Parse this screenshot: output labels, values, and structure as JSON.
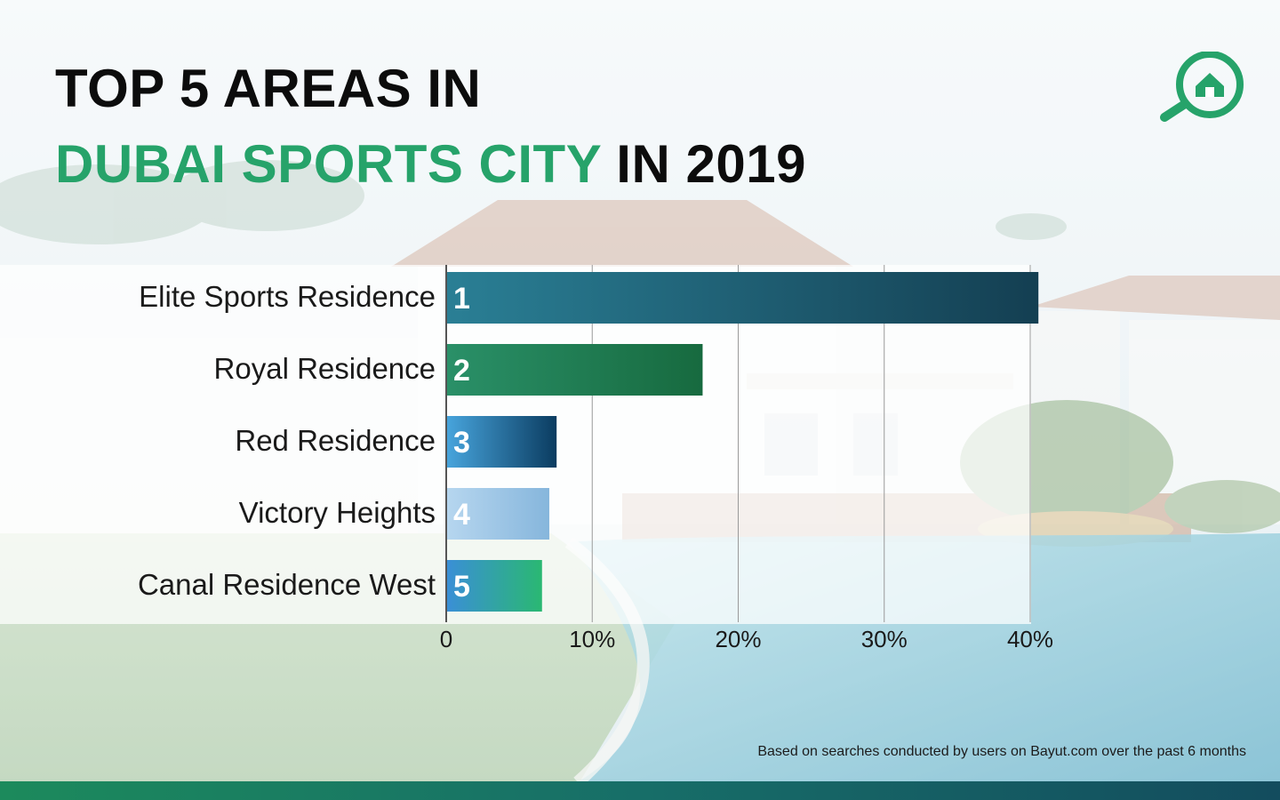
{
  "title": {
    "line1": "TOP 5 AREAS IN",
    "line2_green": "DUBAI SPORTS CITY",
    "line2_black": " IN 2019"
  },
  "logo": {
    "icon": "bayut-magnifier-house-icon",
    "color": "#26a36a"
  },
  "colors": {
    "accent_green": "#26a36a",
    "title_black": "#0c0c0c",
    "footer_bar": "#176e68"
  },
  "chart_data": {
    "type": "bar",
    "orientation": "horizontal",
    "categories": [
      "Elite Sports Residence",
      "Royal Residence",
      "Red Residence",
      "Victory Heights",
      "Canal Residence West"
    ],
    "values": [
      40.5,
      17.5,
      7.5,
      7,
      6.5
    ],
    "ranks": [
      "1",
      "2",
      "3",
      "4",
      "5"
    ],
    "bar_colors": [
      [
        "#2a7f95",
        "#143f52"
      ],
      [
        "#2a9068",
        "#176a3f"
      ],
      [
        "#47a4dc",
        "#0b3c60"
      ],
      [
        "#b6d6ef",
        "#86b6dc"
      ],
      [
        "#3a8fd6",
        "#2ab872"
      ]
    ],
    "xlim": [
      0,
      40
    ],
    "xticks": [
      0,
      10,
      20,
      30,
      40
    ],
    "xtick_labels": [
      "0",
      "10%",
      "20%",
      "30%",
      "40%"
    ],
    "grid": true,
    "legend": "none",
    "title": "",
    "xlabel": "",
    "ylabel": ""
  },
  "footnote": "Based on searches conducted by users on Bayut.com over the past 6 months"
}
